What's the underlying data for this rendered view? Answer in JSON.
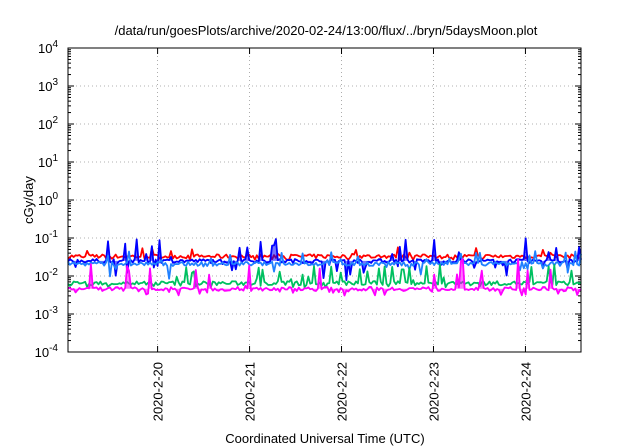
{
  "chart_data": {
    "type": "line",
    "title": "/data/run/goesPlots/archive/2020-02-24/13:00/flux/../bryn/5daysMoon.plot",
    "xlabel": "Coordinated Universal Time (UTC)",
    "ylabel": "cGy/day",
    "yscale": "log",
    "ylim": [
      0.0001,
      10000
    ],
    "y_ticks": [
      {
        "value": 0.0001,
        "base": "10",
        "exp": "-4"
      },
      {
        "value": 0.001,
        "base": "10",
        "exp": "-3"
      },
      {
        "value": 0.01,
        "base": "10",
        "exp": "-2"
      },
      {
        "value": 0.1,
        "base": "10",
        "exp": "-1"
      },
      {
        "value": 1,
        "base": "10",
        "exp": "0"
      },
      {
        "value": 10,
        "base": "10",
        "exp": "1"
      },
      {
        "value": 100,
        "base": "10",
        "exp": "2"
      },
      {
        "value": 1000,
        "base": "10",
        "exp": "3"
      },
      {
        "value": 10000,
        "base": "10",
        "exp": "4"
      }
    ],
    "xlim": [
      "2020-02-19 00:37",
      "2020-02-24 14:30"
    ],
    "x_ticks": [
      "2020-2-20",
      "2020-2-21",
      "2020-2-22",
      "2020-2-23",
      "2020-2-24"
    ],
    "grid": true,
    "series": [
      {
        "color": "#ff0000",
        "base": 0.033,
        "low": 0.026,
        "high": 0.058,
        "fill": false
      },
      {
        "color": "#0000ff",
        "base": 0.025,
        "low": 0.007,
        "high": 0.1,
        "fill": true
      },
      {
        "color": "#2080ff",
        "base": 0.021,
        "low": 0.008,
        "high": 0.045,
        "fill": false
      },
      {
        "color": "#00c060",
        "base": 0.0065,
        "low": 0.005,
        "high": 0.02,
        "fill": false
      },
      {
        "color": "#ff00ff",
        "base": 0.0046,
        "low": 0.003,
        "high": 0.028,
        "fill": true
      }
    ],
    "n_points": 270,
    "seed": 7
  }
}
